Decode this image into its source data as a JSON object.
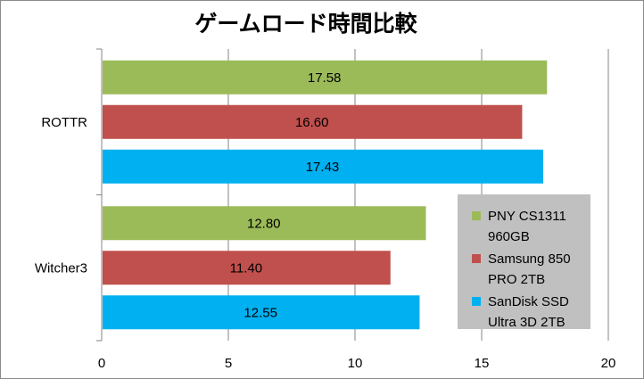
{
  "chart_data": {
    "type": "bar",
    "orientation": "horizontal",
    "title": "ゲームロード時間比較",
    "categories": [
      "ROTTR",
      "Witcher3"
    ],
    "series": [
      {
        "name": "PNY CS1311 960GB",
        "name_lines": [
          "PNY CS1311",
          "960GB"
        ],
        "color": "#9BBB59",
        "values": [
          17.58,
          12.8
        ]
      },
      {
        "name": "Samsung 850 PRO 2TB",
        "name_lines": [
          "Samsung 850",
          "PRO 2TB"
        ],
        "color": "#C0504D",
        "values": [
          16.6,
          11.4
        ]
      },
      {
        "name": "SanDisk SSD Ultra 3D 2TB",
        "name_lines": [
          "SanDisk SSD",
          "Ultra 3D 2TB"
        ],
        "color": "#00B0F0",
        "values": [
          17.43,
          12.55
        ]
      }
    ],
    "xlim": [
      0,
      20
    ],
    "xticks": [
      0,
      5,
      10,
      15,
      20
    ],
    "grid": true,
    "legend_position": "right",
    "legend_background": "#C0C0C0",
    "gridline_color": "#868686"
  }
}
